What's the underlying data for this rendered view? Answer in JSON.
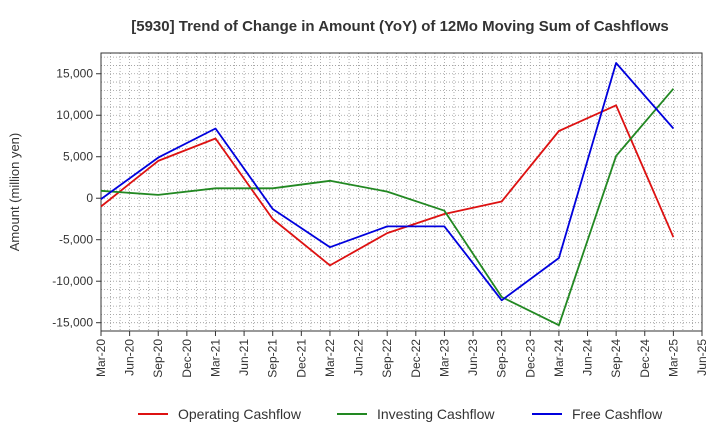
{
  "chart_data": {
    "type": "line",
    "title": "[5930]  Trend of Change in Amount (YoY) of 12Mo Moving Sum of Cashflows",
    "xlabel": "",
    "ylabel": "Amount (million yen)",
    "ylim": [
      -16000,
      17500
    ],
    "yticks": [
      15000,
      10000,
      5000,
      0,
      -5000,
      -10000,
      -15000
    ],
    "ytick_labels": [
      "15,000",
      "10,000",
      "5,000",
      "0",
      "-5,000",
      "-10,000",
      "-15,000"
    ],
    "categories": [
      "Mar-20",
      "Jun-20",
      "Sep-20",
      "Dec-20",
      "Mar-21",
      "Jun-21",
      "Sep-21",
      "Dec-21",
      "Mar-22",
      "Jun-22",
      "Sep-22",
      "Dec-22",
      "Mar-23",
      "Jun-23",
      "Sep-23",
      "Dec-23",
      "Mar-24",
      "Jun-24",
      "Sep-24",
      "Dec-24",
      "Mar-25",
      "Jun-25"
    ],
    "grid": true,
    "legend_position": "bottom",
    "series": [
      {
        "name": "Operating Cashflow",
        "color": "#dd1111",
        "points": [
          [
            "Mar-20",
            -1000
          ],
          [
            "Sep-20",
            4500
          ],
          [
            "Mar-21",
            7200
          ],
          [
            "Sep-21",
            -2500
          ],
          [
            "Mar-22",
            -8100
          ],
          [
            "Sep-22",
            -4200
          ],
          [
            "Mar-23",
            -1900
          ],
          [
            "Sep-23",
            -400
          ],
          [
            "Mar-24",
            8100
          ],
          [
            "Sep-24",
            11200
          ],
          [
            "Mar-25",
            -4700
          ]
        ]
      },
      {
        "name": "Investing Cashflow",
        "color": "#228822",
        "points": [
          [
            "Mar-20",
            900
          ],
          [
            "Sep-20",
            400
          ],
          [
            "Mar-21",
            1200
          ],
          [
            "Sep-21",
            1200
          ],
          [
            "Mar-22",
            2100
          ],
          [
            "Sep-22",
            800
          ],
          [
            "Mar-23",
            -1500
          ],
          [
            "Sep-23",
            -11900
          ],
          [
            "Mar-24",
            -15300
          ],
          [
            "Sep-24",
            5100
          ],
          [
            "Mar-25",
            13200
          ]
        ]
      },
      {
        "name": "Free Cashflow",
        "color": "#0000dd",
        "points": [
          [
            "Mar-20",
            -100
          ],
          [
            "Sep-20",
            4900
          ],
          [
            "Mar-21",
            8400
          ],
          [
            "Sep-21",
            -1300
          ],
          [
            "Mar-22",
            -5900
          ],
          [
            "Sep-22",
            -3400
          ],
          [
            "Mar-23",
            -3400
          ],
          [
            "Sep-23",
            -12300
          ],
          [
            "Mar-24",
            -7200
          ],
          [
            "Sep-24",
            16300
          ],
          [
            "Mar-25",
            8400
          ]
        ]
      }
    ]
  }
}
